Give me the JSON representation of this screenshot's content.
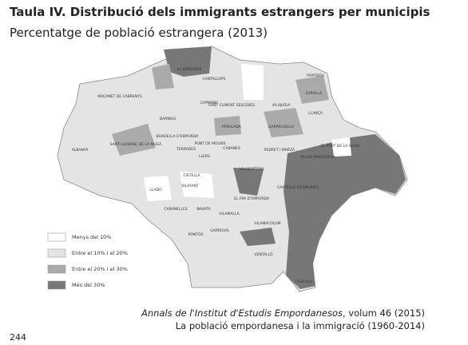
{
  "header": {
    "title": "Taula IV. Distribució dels immigrants estrangers per municipis",
    "subtitle": "Percentatge de població estrangera (2013)"
  },
  "map": {
    "labels": [
      "LA JONQUERA",
      "CANTALLOPS",
      "PORTBOU",
      "MAÇANET DE CABRENYS",
      "ESPOLLA",
      "CAPMANY",
      "SANT CLIMENT SESCEBES",
      "VILAJUÏGA",
      "LLANÇÀ",
      "DARNIUS",
      "PERALADA",
      "GARRIGUELLA",
      "SANT LLORENÇ DE LA MUGA",
      "BOADELLA D'EMPORDÀ",
      "PONT DE MOLINS",
      "CABANES",
      "PEDRET I MARZÀ",
      "EL PORT DE LA SELVA",
      "TERRADES",
      "LLERS",
      "ALBANYÀ",
      "PALAU-SAVERDERA",
      "CISTELLA",
      "VILAFANT",
      "LLADÓ",
      "VILABERTRAN",
      "EL FAR D'EMPORDÀ",
      "CASTELLÓ D'EMPÚRIES",
      "CABANELLES",
      "NAVATA",
      "VILAMALLA",
      "GARRIGÀS",
      "PONTÓS",
      "VILAMACOLUM",
      "VENTALLÓ",
      "L'ESCALA"
    ],
    "legend": [
      "Menys del 10%",
      "Entre el 10% i el 20%",
      "Entre el 20% i el 30%",
      "Més del 30%"
    ]
  },
  "caption": {
    "journal": "Annals de l'Institut d'Estudis Empordanesos",
    "volume": ", volum 46 (2015)",
    "article": "La població empordanesa i la immigració (1960-2014)"
  },
  "page_number": "244"
}
